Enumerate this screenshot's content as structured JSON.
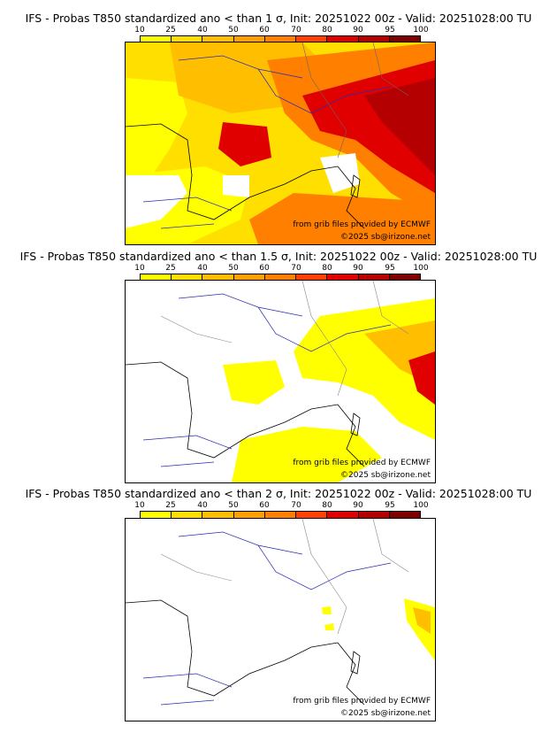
{
  "colorbar": {
    "ticks": [
      "10",
      "25",
      "40",
      "50",
      "60",
      "70",
      "80",
      "90",
      "95",
      "100"
    ],
    "colors": [
      "#ffff00",
      "#ffdf00",
      "#ffbf00",
      "#ff9f00",
      "#ff7f00",
      "#ff4000",
      "#e00000",
      "#b40000",
      "#800000"
    ]
  },
  "panels": [
    {
      "title": "IFS - Probas T850  standardized ano < than 1 σ, Init: 20251022 00z - Valid: 20251028:00 TU",
      "credit_source": "from grib files provided by ECMWF",
      "credit_copyright": "©2025 sb@irizone.net"
    },
    {
      "title": "IFS - Probas T850  standardized ano < than 1.5 σ, Init: 20251022 00z - Valid: 20251028:00 TU",
      "credit_source": "from grib files provided by ECMWF",
      "credit_copyright": "©2025 sb@irizone.net"
    },
    {
      "title": "IFS - Probas T850  standardized ano < than 2 σ, Init: 20251022 00z - Valid: 20251028:00 TU",
      "credit_source": "from grib files provided by ECMWF",
      "credit_copyright": "©2025 sb@irizone.net"
    }
  ]
}
